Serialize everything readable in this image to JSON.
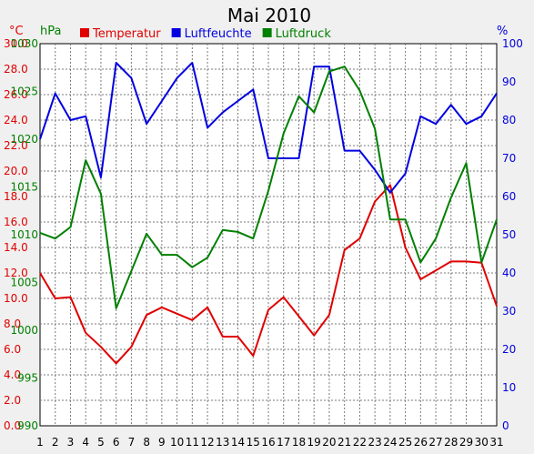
{
  "chart_data": {
    "type": "line",
    "title": "Mai 2010",
    "units": {
      "temperature": "°C",
      "pressure": "hPa",
      "humidity": "%"
    },
    "x": [
      1,
      2,
      3,
      4,
      5,
      6,
      7,
      8,
      9,
      10,
      11,
      12,
      13,
      14,
      15,
      16,
      17,
      18,
      19,
      20,
      21,
      22,
      23,
      24,
      25,
      26,
      27,
      28,
      29,
      30,
      31
    ],
    "xlim": [
      1,
      31
    ],
    "axes": {
      "temperature": {
        "ticks": [
          "0.0",
          "2.0",
          "4.0",
          "6.0",
          "8.0",
          "10.0",
          "12.0",
          "14.0",
          "16.0",
          "18.0",
          "20.0",
          "22.0",
          "24.0",
          "26.0",
          "28.0",
          "30.0"
        ],
        "ylim": [
          0,
          30
        ]
      },
      "pressure": {
        "ticks": [
          "990",
          "995",
          "1000",
          "1005",
          "1010",
          "1015",
          "1020",
          "1025",
          "1030"
        ],
        "ylim": [
          990,
          1030
        ]
      },
      "humidity": {
        "ticks": [
          "0",
          "10",
          "20",
          "30",
          "40",
          "50",
          "60",
          "70",
          "80",
          "90",
          "100"
        ],
        "ylim": [
          0,
          100
        ]
      }
    },
    "grid": true,
    "legend_position": "top-left",
    "series": [
      {
        "name": "Temperatur",
        "axis": "temperature",
        "color": "#e00000",
        "values": [
          12.0,
          10.0,
          10.1,
          7.3,
          6.2,
          4.9,
          6.2,
          8.7,
          9.3,
          8.8,
          8.3,
          9.3,
          7.0,
          7.0,
          5.5,
          9.1,
          10.1,
          8.6,
          7.1,
          8.7,
          13.8,
          14.7,
          17.6,
          18.9,
          14.0,
          11.5,
          12.2,
          12.9,
          12.9,
          12.8,
          9.4
        ]
      },
      {
        "name": "Luftfeuchte",
        "axis": "humidity",
        "color": "#0000e0",
        "values": [
          75,
          87,
          80,
          81,
          65,
          95,
          91,
          79,
          85,
          91,
          95,
          78,
          82,
          85,
          88,
          70,
          70,
          70,
          94,
          94,
          72,
          72,
          67,
          61,
          66,
          81,
          79,
          84,
          79,
          81,
          87
        ]
      },
      {
        "name": "Luftdruck",
        "axis": "pressure",
        "color": "#008000",
        "values": [
          1010.2,
          1009.6,
          1010.8,
          1017.8,
          1014.3,
          1002.3,
          1006.2,
          1010.1,
          1007.9,
          1007.9,
          1006.6,
          1007.6,
          1010.5,
          1010.3,
          1009.6,
          1014.6,
          1020.6,
          1024.5,
          1022.8,
          1027.1,
          1027.6,
          1025.1,
          1021.1,
          1011.6,
          1011.6,
          1007.1,
          1009.6,
          1013.9,
          1017.5,
          1007.1,
          1011.6
        ]
      }
    ]
  }
}
